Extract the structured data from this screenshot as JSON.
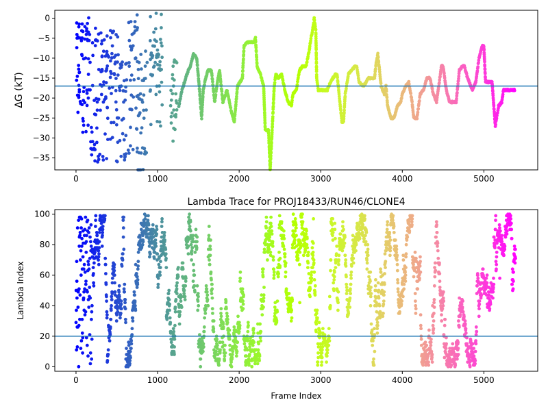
{
  "chart_data": [
    {
      "type": "scatter",
      "title": "",
      "xlabel": "",
      "ylabel": "ΔG (kT)",
      "xlim": [
        -260,
        5660
      ],
      "ylim": [
        -38,
        2
      ],
      "xticks": [
        0,
        1000,
        2000,
        3000,
        4000,
        5000
      ],
      "yticks": [
        0,
        -5,
        -10,
        -15,
        -20,
        -25,
        -30,
        -35
      ],
      "hline": -17,
      "colormap": "rainbow",
      "color_by": "x",
      "clusters": [
        {
          "x": [
            0,
            40
          ],
          "ys": [
            -24,
            -12,
            -8,
            -5,
            -2,
            0,
            -14,
            -19,
            -16,
            -30.5
          ]
        },
        {
          "x": [
            40,
            180
          ],
          "ys": [
            -26,
            -22,
            -18,
            -14,
            -10,
            -6,
            -3,
            -1,
            -28,
            -20
          ]
        },
        {
          "x": [
            180,
            380
          ],
          "ys": [
            -35,
            -32,
            -28,
            -24,
            -20,
            -17,
            -13,
            -9,
            -6,
            -3
          ]
        },
        {
          "x": [
            380,
            520
          ],
          "ys": [
            -36,
            -30,
            -26,
            -22,
            -18,
            -14,
            -10,
            -7,
            -4,
            -9,
            -12
          ]
        },
        {
          "x": [
            520,
            620
          ],
          "ys": [
            -35,
            -30,
            -25,
            -21,
            -18,
            -15,
            -12
          ]
        },
        {
          "x": [
            640,
            760
          ],
          "ys": [
            -33,
            -28,
            -23,
            -19,
            -15,
            -11,
            -7,
            -3,
            0,
            -5
          ]
        },
        {
          "x": [
            760,
            880
          ],
          "ys": [
            -38,
            -33,
            -28,
            -24,
            -20,
            -16,
            -12,
            -9
          ]
        },
        {
          "x": [
            900,
            1060
          ],
          "ys": [
            -26,
            -22,
            -18,
            -15,
            -12,
            -9,
            -6,
            -3,
            1,
            -10
          ]
        },
        {
          "x": [
            1160,
            1240
          ],
          "ys": [
            -30,
            -27,
            -24,
            -21,
            -18,
            -15,
            -11
          ]
        }
      ],
      "line": {
        "x": [
          1260,
          1300,
          1360,
          1400,
          1440,
          1480,
          1510,
          1540,
          1560,
          1590,
          1620,
          1660,
          1700,
          1720,
          1740,
          1760,
          1800,
          1820,
          1850,
          1900,
          1940,
          1980,
          2040,
          2060,
          2100,
          2140,
          2180,
          2200,
          2220,
          2260,
          2300,
          2320,
          2360,
          2380,
          2400,
          2430,
          2450,
          2480,
          2520,
          2560,
          2600,
          2640,
          2660,
          2700,
          2740,
          2780,
          2820,
          2860,
          2880,
          2900,
          2920,
          2940,
          2950,
          2970,
          3000,
          3040,
          3080,
          3120,
          3180,
          3200,
          3230,
          3260,
          3280,
          3300,
          3340,
          3380,
          3420,
          3440,
          3470,
          3520,
          3560,
          3580,
          3620,
          3660,
          3680,
          3700,
          3740,
          3780,
          3800,
          3820,
          3860,
          3900,
          3940,
          3980,
          4000,
          4040,
          4080,
          4120,
          4140,
          4180,
          4220,
          4260,
          4300,
          4340,
          4380,
          4420,
          4440,
          4480,
          4500,
          4540,
          4580,
          4620,
          4660,
          4700,
          4740,
          4760,
          4800,
          4820,
          4860,
          4900,
          4940,
          4980,
          5000,
          5020,
          5060,
          5100,
          5140,
          5180,
          5220,
          5240,
          5260,
          5300,
          5340,
          5380
        ],
        "y": [
          -22,
          -18,
          -14,
          -12,
          -9,
          -10,
          -17,
          -25,
          -18,
          -15,
          -13,
          -13,
          -21,
          -18,
          -15,
          -13,
          -21,
          -20,
          -18,
          -23,
          -26,
          -17,
          -15,
          -7,
          -6,
          -6,
          -6,
          -5,
          -12,
          -14,
          -17,
          -28,
          -28,
          -38,
          -30,
          -17,
          -14,
          -15,
          -14,
          -18,
          -21,
          -22,
          -19,
          -18,
          -13,
          -12,
          -12,
          -8,
          -5,
          -3,
          0,
          -3,
          -15,
          -18,
          -18,
          -18,
          -18,
          -16,
          -14,
          -14,
          -20,
          -26,
          -26,
          -19,
          -14,
          -13,
          -12,
          -12,
          -16,
          -17,
          -16,
          -15,
          -15,
          -15,
          -11,
          -9,
          -17,
          -19,
          -17,
          -22,
          -25,
          -25,
          -22,
          -21,
          -19,
          -17,
          -16,
          -21,
          -25,
          -25,
          -19,
          -18,
          -15,
          -15,
          -19,
          -21,
          -18,
          -12,
          -12,
          -18,
          -21,
          -21,
          -21,
          -13,
          -12,
          -12,
          -15,
          -16,
          -18,
          -16,
          -10,
          -7,
          -7,
          -16,
          -16,
          -16,
          -27,
          -22,
          -21,
          -18,
          -18,
          -18,
          -18,
          -18
        ]
      }
    },
    {
      "type": "scatter",
      "title": "Lambda Trace for PROJ18433/RUN46/CLONE4",
      "xlabel": "Frame Index",
      "ylabel": "Lambda Index",
      "xlim": [
        -260,
        5660
      ],
      "ylim": [
        -3,
        103
      ],
      "xticks": [
        0,
        1000,
        2000,
        3000,
        4000,
        5000
      ],
      "yticks": [
        0,
        20,
        40,
        60,
        80,
        100
      ],
      "hline": 20,
      "colormap": "rainbow",
      "color_by": "x",
      "x_range": [
        0,
        5390
      ],
      "y_range": [
        0,
        100
      ],
      "point_count": 5390
    }
  ]
}
